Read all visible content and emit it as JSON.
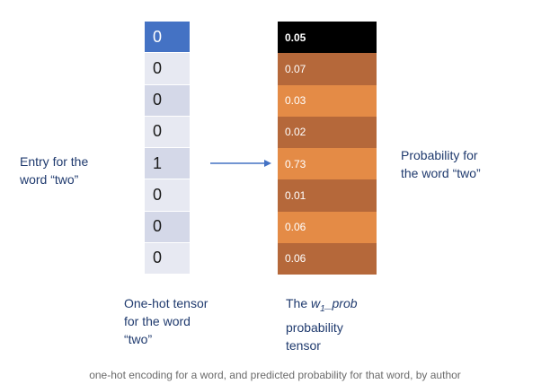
{
  "one_hot": {
    "cells": [
      "0",
      "0",
      "0",
      "0",
      "1",
      "0",
      "0",
      "0"
    ],
    "highlight_color": "#4472c4",
    "cell_colors": [
      "#d4d8e8",
      "#e7e9f2"
    ]
  },
  "probability": {
    "cells": [
      "0.05",
      "0.07",
      "0.03",
      "0.02",
      "0.73",
      "0.01",
      "0.06",
      "0.06"
    ],
    "colors": {
      "head": "#000000",
      "dark": "#b5683a",
      "light": "#e48b46"
    }
  },
  "labels": {
    "entry_line1": "Entry for the",
    "entry_line2": "word “two”",
    "prob_line1": "Probability for",
    "prob_line2": "the word “two”",
    "onehot_line1": "One-hot tensor",
    "onehot_line2": "for the word",
    "onehot_line3": "“two”",
    "w1_prefix": "The ",
    "w1_name": "w",
    "w1_sub": "1",
    "w1_suffix": "_prob",
    "w1_line2": "probability",
    "w1_line3": "tensor"
  },
  "caption": "one-hot encoding for a word, and predicted probability for that word, by author",
  "arrow_color": "#4472c4",
  "text_color": "#1f3a6e"
}
